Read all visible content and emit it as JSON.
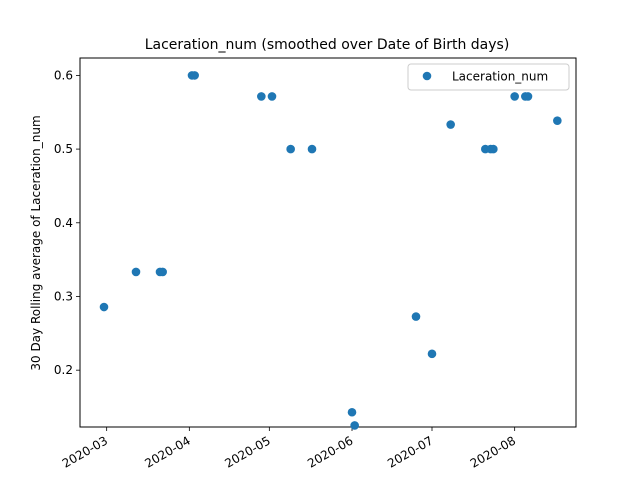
{
  "chart_data": {
    "type": "scatter",
    "title": "Laceration_num (smoothed over Date of Birth days)",
    "xlabel": "",
    "ylabel": "30 Day Rolling average of Laceration_num",
    "x_axis_type": "date",
    "xlim": [
      "2020-02-20",
      "2020-08-24"
    ],
    "ylim": [
      0.1229,
      0.6236
    ],
    "x_ticks": [
      "2020-03",
      "2020-04",
      "2020-05",
      "2020-06",
      "2020-07",
      "2020-08"
    ],
    "x_tick_dates": [
      "2020-03-01",
      "2020-04-01",
      "2020-05-01",
      "2020-06-01",
      "2020-07-01",
      "2020-08-01"
    ],
    "y_ticks": [
      0.2,
      0.3,
      0.4,
      0.5,
      0.6
    ],
    "y_tick_labels": [
      "0.2",
      "0.3",
      "0.4",
      "0.5",
      "0.6"
    ],
    "grid": false,
    "legend_position": "top-right",
    "color": "#1f77b4",
    "series": [
      {
        "name": "Laceration_num",
        "points": [
          {
            "x": "2020-02-29",
            "y": 0.2857
          },
          {
            "x": "2020-03-12",
            "y": 0.3333
          },
          {
            "x": "2020-03-21",
            "y": 0.3333
          },
          {
            "x": "2020-03-22",
            "y": 0.3333
          },
          {
            "x": "2020-04-02",
            "y": 0.6
          },
          {
            "x": "2020-04-03",
            "y": 0.6
          },
          {
            "x": "2020-04-28",
            "y": 0.5714
          },
          {
            "x": "2020-05-02",
            "y": 0.5714
          },
          {
            "x": "2020-05-09",
            "y": 0.5
          },
          {
            "x": "2020-05-17",
            "y": 0.5
          },
          {
            "x": "2020-06-01",
            "y": 0.1429
          },
          {
            "x": "2020-06-02",
            "y": 0.125
          },
          {
            "x": "2020-06-25",
            "y": 0.2727
          },
          {
            "x": "2020-07-01",
            "y": 0.2222
          },
          {
            "x": "2020-07-08",
            "y": 0.5333
          },
          {
            "x": "2020-07-21",
            "y": 0.5
          },
          {
            "x": "2020-07-23",
            "y": 0.5
          },
          {
            "x": "2020-07-24",
            "y": 0.5
          },
          {
            "x": "2020-08-01",
            "y": 0.5714
          },
          {
            "x": "2020-08-05",
            "y": 0.5714
          },
          {
            "x": "2020-08-06",
            "y": 0.5714
          },
          {
            "x": "2020-08-17",
            "y": 0.5385
          }
        ]
      }
    ]
  }
}
